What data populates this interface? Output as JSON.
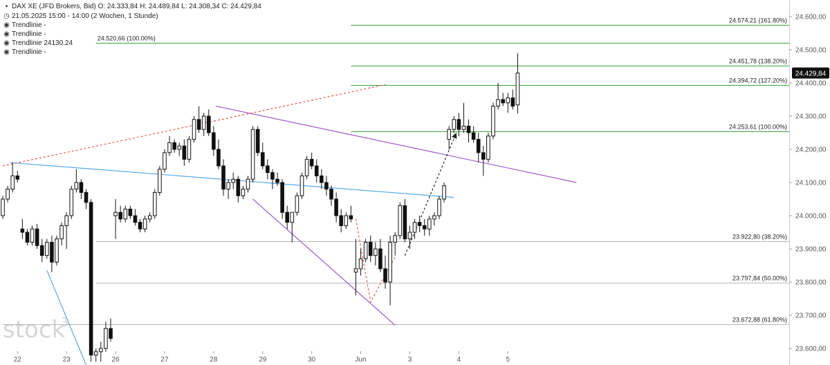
{
  "header": {
    "instrument": "DAX XE (JFD Brokers, Bid)",
    "ohlc": "O: 24.333,84  H: 24.489,84  L: 24.308,34  C: 24.429,84",
    "time_range": "21.05.2025 15:00 - 14:00  (2 Wochen, 1 Stunde)",
    "indicators": [
      "Trendlinie  -",
      "Trendlinie  -",
      "Trendlinie  24130.24",
      "Trendlinie  -"
    ]
  },
  "watermark": "stock",
  "watermark_sup": "3",
  "colors": {
    "fib": "#3aa53a",
    "gray_level": "#b8b8b8",
    "blue_trend": "#55a8e6",
    "purple_trend": "#9b59c9",
    "red_trend": "#e6553f",
    "last_price_bg": "#111111"
  },
  "chart_data": {
    "type": "candlestick",
    "y_axis": {
      "range": [
        23550,
        24650
      ],
      "ticks": [
        "23.600,00",
        "23.700,00",
        "23.800,00",
        "23.900,00",
        "24.000,00",
        "24.100,00",
        "24.200,00",
        "24.300,00",
        "24.400,00",
        "24.500,00",
        "24.600,00"
      ],
      "tick_values": [
        23600,
        23700,
        23800,
        23900,
        24000,
        24100,
        24200,
        24300,
        24400,
        24500,
        24600
      ]
    },
    "x_axis": {
      "labels": [
        "22",
        "23",
        "26",
        "27",
        "28",
        "29",
        "30",
        "Jun",
        "3",
        "4",
        "5"
      ],
      "label_bars": [
        3,
        13,
        23,
        33,
        43,
        53,
        63,
        73,
        83,
        93,
        103
      ]
    },
    "last_price_label": "24.429,84",
    "last_price": 24429.84,
    "fib_levels": [
      {
        "label": "24.574,21 (161.80%)",
        "value": 24574.21,
        "color": "#3aa53a",
        "start_bar": 71
      },
      {
        "label": "24.520,66 (100.00%)",
        "value": 24520.66,
        "color": "#3aa53a",
        "start_bar": 19,
        "label_left": true
      },
      {
        "label": "24.451,78 (138.20%)",
        "value": 24451.78,
        "color": "#3aa53a",
        "start_bar": 71
      },
      {
        "label": "24.394,72 (127.20%)",
        "value": 24394.72,
        "color": "#3aa53a",
        "start_bar": 71
      },
      {
        "label": "24.253,61 (100.00%)",
        "value": 24253.61,
        "color": "#3aa53a",
        "start_bar": 71
      },
      {
        "label": "23.922,80 (38.20%)",
        "value": 23922.8,
        "color": "#b8b8b8",
        "start_bar": 19
      },
      {
        "label": "23.797,84 (50.00%)",
        "value": 23797.84,
        "color": "#b8b8b8",
        "start_bar": 19
      },
      {
        "label": "23.672,88 (61.80%)",
        "value": 23672.88,
        "color": "#b8b8b8",
        "start_bar": 0
      }
    ],
    "trendlines": [
      {
        "color": "#55a8e6",
        "dash": false,
        "points": [
          [
            1.5,
            24160
          ],
          [
            92,
            24055
          ]
        ]
      },
      {
        "color": "#55a8e6",
        "dash": false,
        "points": [
          [
            9,
            23835
          ],
          [
            17,
            23550
          ]
        ]
      },
      {
        "color": "#9b59c9",
        "dash": false,
        "points": [
          [
            43.5,
            24330
          ],
          [
            117,
            24100
          ]
        ]
      },
      {
        "color": "#9b59c9",
        "dash": false,
        "points": [
          [
            51,
            24050
          ],
          [
            80,
            23670
          ]
        ]
      },
      {
        "color": "#e6553f",
        "dash": true,
        "points": [
          [
            0,
            24150
          ],
          [
            78,
            24395
          ]
        ]
      },
      {
        "color": "#e6553f",
        "dash": true,
        "points": [
          [
            72,
            23990
          ],
          [
            75,
            23740
          ],
          [
            80,
            23875
          ]
        ]
      },
      {
        "color": "#222222",
        "dash": true,
        "arrow": true,
        "points": [
          [
            82,
            23880
          ],
          [
            92.5,
            24250
          ]
        ]
      }
    ],
    "candles": [
      [
        24000,
        24060,
        23990,
        24050
      ],
      [
        24050,
        24090,
        24040,
        24080
      ],
      [
        24080,
        24160,
        24070,
        24120
      ],
      [
        24120,
        24135,
        24100,
        24110
      ],
      [
        23960,
        23990,
        23930,
        23950
      ],
      [
        23950,
        23960,
        23910,
        23920
      ],
      [
        23920,
        23970,
        23910,
        23960
      ],
      [
        23960,
        23975,
        23900,
        23910
      ],
      [
        23910,
        23930,
        23860,
        23880
      ],
      [
        23880,
        23930,
        23870,
        23920
      ],
      [
        23920,
        23940,
        23830,
        23860
      ],
      [
        23860,
        23940,
        23850,
        23930
      ],
      [
        23930,
        23980,
        23910,
        23970
      ],
      [
        23970,
        24010,
        23900,
        24000
      ],
      [
        24000,
        24090,
        23990,
        24080
      ],
      [
        24080,
        24140,
        24070,
        24100
      ],
      [
        24100,
        24110,
        24050,
        24070
      ],
      [
        24070,
        24080,
        24020,
        24040
      ],
      [
        24040,
        24050,
        23560,
        23580
      ],
      [
        23580,
        23600,
        23560,
        23590
      ],
      [
        23590,
        23620,
        23560,
        23600
      ],
      [
        23600,
        23680,
        23590,
        23660
      ],
      [
        23660,
        23690,
        23620,
        23630
      ],
      [
        24000,
        24050,
        23930,
        24010
      ],
      [
        24010,
        24030,
        23980,
        23990
      ],
      [
        23990,
        24030,
        23980,
        24020
      ],
      [
        24020,
        24030,
        23990,
        24000
      ],
      [
        24000,
        24020,
        23970,
        23980
      ],
      [
        23980,
        23990,
        23950,
        23960
      ],
      [
        23960,
        24000,
        23950,
        23990
      ],
      [
        23990,
        24010,
        23980,
        24000
      ],
      [
        24000,
        24080,
        23990,
        24070
      ],
      [
        24070,
        24150,
        24060,
        24140
      ],
      [
        24140,
        24200,
        24130,
        24190
      ],
      [
        24190,
        24240,
        24180,
        24220
      ],
      [
        24220,
        24230,
        24190,
        24200
      ],
      [
        24200,
        24220,
        24180,
        24210
      ],
      [
        24210,
        24230,
        24150,
        24170
      ],
      [
        24170,
        24240,
        24160,
        24230
      ],
      [
        24230,
        24300,
        24220,
        24290
      ],
      [
        24290,
        24330,
        24250,
        24260
      ],
      [
        24260,
        24310,
        24240,
        24300
      ],
      [
        24300,
        24320,
        24240,
        24250
      ],
      [
        24250,
        24270,
        24180,
        24200
      ],
      [
        24200,
        24230,
        24140,
        24150
      ],
      [
        24150,
        24170,
        24060,
        24080
      ],
      [
        24080,
        24110,
        24050,
        24100
      ],
      [
        24100,
        24130,
        24080,
        24110
      ],
      [
        24110,
        24120,
        24040,
        24060
      ],
      [
        24060,
        24090,
        24050,
        24080
      ],
      [
        24080,
        24120,
        24070,
        24110
      ],
      [
        24110,
        24270,
        24100,
        24260
      ],
      [
        24260,
        24270,
        24180,
        24190
      ],
      [
        24190,
        24220,
        24140,
        24150
      ],
      [
        24150,
        24170,
        24110,
        24130
      ],
      [
        24130,
        24140,
        24080,
        24110
      ],
      [
        24110,
        24130,
        24090,
        24100
      ],
      [
        24100,
        24110,
        23990,
        24010
      ],
      [
        24010,
        24030,
        23960,
        23980
      ],
      [
        23980,
        24000,
        23920,
        24010
      ],
      [
        24010,
        24070,
        24000,
        24060
      ],
      [
        24060,
        24130,
        24050,
        24120
      ],
      [
        24120,
        24180,
        24110,
        24170
      ],
      [
        24170,
        24190,
        24140,
        24150
      ],
      [
        24150,
        24170,
        24100,
        24120
      ],
      [
        24120,
        24140,
        24080,
        24100
      ],
      [
        24100,
        24120,
        24060,
        24080
      ],
      [
        24080,
        24090,
        24030,
        24050
      ],
      [
        24050,
        24070,
        23980,
        24000
      ],
      [
        24000,
        24020,
        23950,
        23970
      ],
      [
        23970,
        24010,
        23960,
        24000
      ],
      [
        24000,
        24030,
        23980,
        23990
      ],
      [
        23830,
        23930,
        23760,
        23840
      ],
      [
        23840,
        23900,
        23820,
        23870
      ],
      [
        23870,
        23930,
        23860,
        23920
      ],
      [
        23920,
        23940,
        23860,
        23880
      ],
      [
        23880,
        23920,
        23850,
        23900
      ],
      [
        23900,
        23930,
        23830,
        23840
      ],
      [
        23840,
        23880,
        23780,
        23800
      ],
      [
        23800,
        23940,
        23730,
        23920
      ],
      [
        23920,
        23950,
        23880,
        23940
      ],
      [
        23940,
        24040,
        23930,
        24030
      ],
      [
        24030,
        24050,
        23920,
        23930
      ],
      [
        23930,
        23970,
        23900,
        23950
      ],
      [
        23950,
        23990,
        23930,
        23980
      ],
      [
        23980,
        24000,
        23950,
        23970
      ],
      [
        23970,
        23990,
        23940,
        23960
      ],
      [
        23960,
        24000,
        23940,
        23990
      ],
      [
        23990,
        24010,
        23970,
        24000
      ],
      [
        24000,
        24060,
        23990,
        24050
      ],
      [
        24050,
        24100,
        24040,
        24090
      ],
      [
        24230,
        24270,
        24200,
        24260
      ],
      [
        24260,
        24300,
        24250,
        24290
      ],
      [
        24290,
        24310,
        24240,
        24260
      ],
      [
        24260,
        24340,
        24250,
        24270
      ],
      [
        24270,
        24290,
        24220,
        24250
      ],
      [
        24250,
        24270,
        24220,
        24230
      ],
      [
        24230,
        24250,
        24160,
        24190
      ],
      [
        24190,
        24210,
        24120,
        24170
      ],
      [
        24170,
        24250,
        24160,
        24240
      ],
      [
        24240,
        24340,
        24230,
        24330
      ],
      [
        24330,
        24400,
        24320,
        24350
      ],
      [
        24350,
        24370,
        24330,
        24340
      ],
      [
        24340,
        24370,
        24310,
        24355
      ],
      [
        24355,
        24380,
        24320,
        24330
      ],
      [
        24333.84,
        24489.84,
        24308.34,
        24429.84
      ]
    ]
  }
}
